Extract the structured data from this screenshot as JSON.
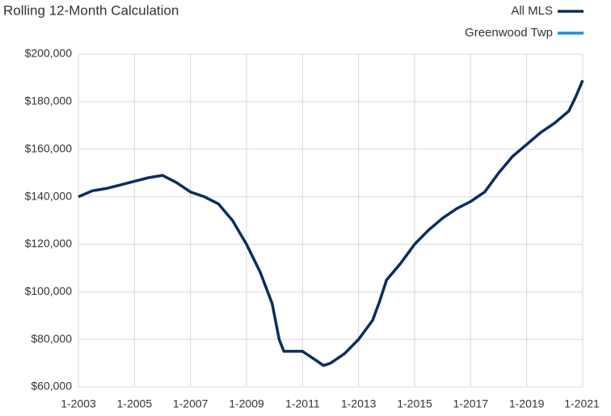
{
  "chart_data": {
    "type": "line",
    "title": "Rolling 12-Month Calculation",
    "x": [
      "1-2003",
      "7-2003",
      "1-2004",
      "7-2004",
      "1-2005",
      "7-2005",
      "1-2006",
      "7-2006",
      "1-2007",
      "7-2007",
      "1-2008",
      "7-2008",
      "1-2009",
      "7-2009",
      "12-2009",
      "3-2010",
      "5-2010",
      "1-2011",
      "7-2011",
      "10-2011",
      "1-2012",
      "7-2012",
      "1-2013",
      "7-2013",
      "10-2013",
      "1-2014",
      "7-2014",
      "1-2015",
      "7-2015",
      "1-2016",
      "7-2016",
      "1-2017",
      "7-2017",
      "1-2018",
      "7-2018",
      "1-2019",
      "7-2019",
      "1-2020",
      "7-2020",
      "10-2020",
      "1-2021"
    ],
    "series": [
      {
        "name": "All MLS",
        "color": "#0b2d5e",
        "values": [
          140000,
          142500,
          143500,
          145000,
          146500,
          148000,
          149000,
          146000,
          142000,
          140000,
          137000,
          130000,
          120000,
          108000,
          95000,
          80000,
          75000,
          75000,
          71000,
          69000,
          70000,
          74000,
          80000,
          88000,
          96000,
          105000,
          112000,
          120000,
          126000,
          131000,
          135000,
          138000,
          142000,
          150000,
          157000,
          162000,
          167000,
          171000,
          176000,
          182000,
          189000
        ]
      },
      {
        "name": "Greenwood Twp",
        "color": "#1e8fd5",
        "values": [
          null,
          null,
          null,
          null,
          null,
          null,
          null,
          null,
          null,
          null,
          null,
          null,
          null,
          null,
          null,
          null,
          null,
          null,
          null,
          null,
          null,
          null,
          null,
          null,
          null,
          null,
          null,
          null,
          null,
          null,
          null,
          null,
          null,
          null,
          null,
          null,
          null,
          null,
          null,
          null,
          null
        ]
      }
    ],
    "xlim": [
      "1-2003",
      "1-2021"
    ],
    "xticks": [
      "1-2003",
      "1-2005",
      "1-2007",
      "1-2009",
      "1-2011",
      "1-2013",
      "1-2015",
      "1-2017",
      "1-2019",
      "1-2021"
    ],
    "ylim": [
      60000,
      200000
    ],
    "yticks": [
      {
        "value": 60000,
        "label": "$60,000"
      },
      {
        "value": 80000,
        "label": "$80,000"
      },
      {
        "value": 100000,
        "label": "$100,000"
      },
      {
        "value": 120000,
        "label": "$120,000"
      },
      {
        "value": 140000,
        "label": "$140,000"
      },
      {
        "value": 160000,
        "label": "$160,000"
      },
      {
        "value": 180000,
        "label": "$180,000"
      },
      {
        "value": 200000,
        "label": "$200,000"
      }
    ],
    "grid": true,
    "legend": "top-right"
  }
}
